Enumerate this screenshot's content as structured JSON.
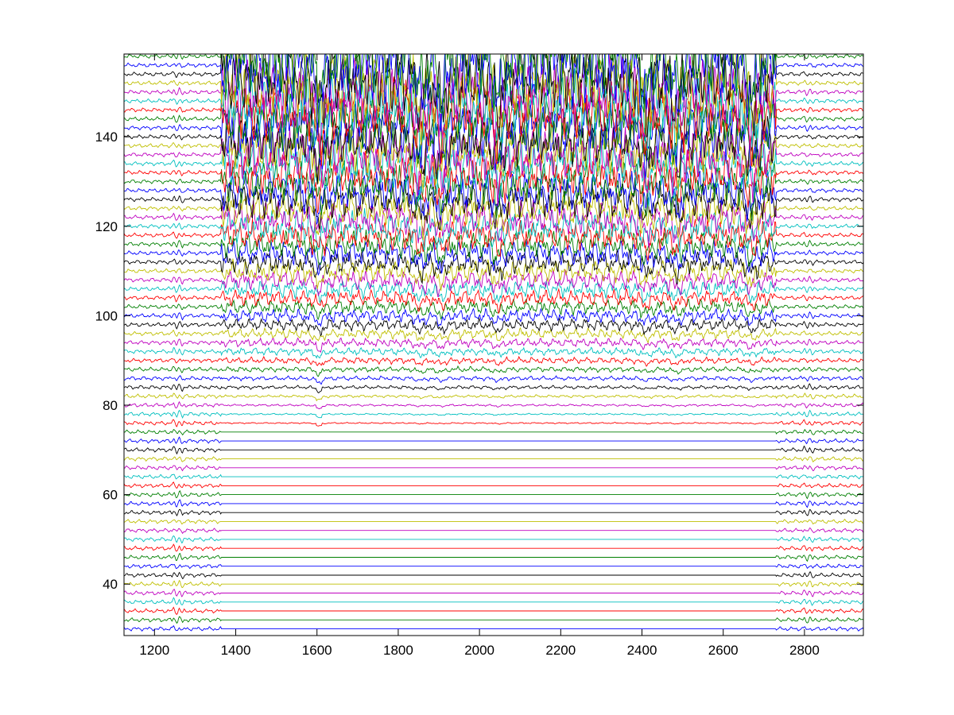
{
  "chart_data": {
    "type": "line",
    "title": "",
    "xlabel": "",
    "ylabel": "",
    "xlim": [
      1125,
      2945
    ],
    "ylim": [
      28.5,
      158.5
    ],
    "xticks": [
      1200,
      1400,
      1600,
      1800,
      2000,
      2200,
      2400,
      2600,
      2800
    ],
    "yticks": [
      40,
      60,
      80,
      100,
      120,
      140
    ],
    "grid": false,
    "legend": "none",
    "series_count": 65,
    "series_offsets": {
      "first": 30,
      "last": 158,
      "step": 2
    },
    "series_colors": [
      "#0000ff",
      "#007f00",
      "#ff0000",
      "#00bfbf",
      "#bf00bf",
      "#bfbf00",
      "#000000"
    ],
    "segments": [
      {
        "name": "pre",
        "x_range": [
          1125,
          1365
        ],
        "description": "low-amplitude oscillation on every trace, small transient near x=1255"
      },
      {
        "name": "stimulus",
        "x_range": [
          1365,
          2730
        ],
        "flat_below_offset": 75,
        "amplitude_grows_with_offset": true,
        "clipped_above": 158.5
      },
      {
        "name": "post",
        "x_range": [
          2730,
          2945
        ],
        "description": "low-amplitude oscillation resumes on every trace"
      }
    ],
    "notable_events_x": [
      1605,
      1855,
      1905,
      2045,
      2410,
      2485,
      2670
    ]
  }
}
